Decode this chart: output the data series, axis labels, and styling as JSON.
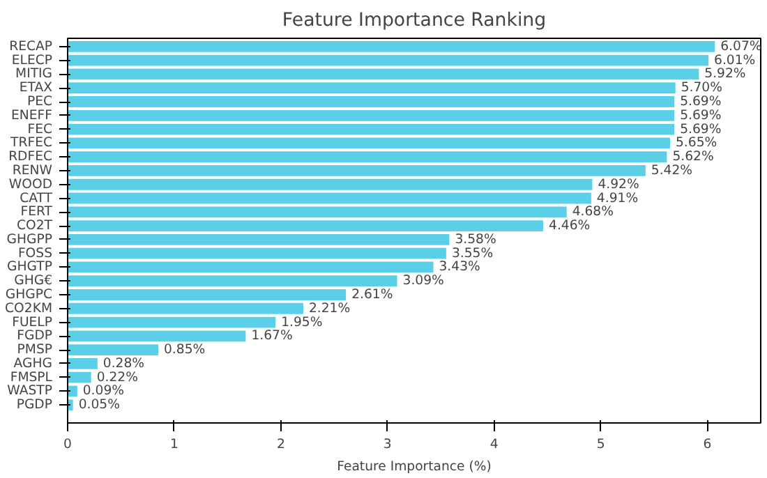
{
  "chart_data": {
    "type": "bar",
    "orientation": "horizontal",
    "title": "Feature Importance Ranking",
    "xlabel": "Feature Importance (%)",
    "categories": [
      "RECAP",
      "ELECP",
      "MITIG",
      "ETAX",
      "PEC",
      "ENEFF",
      "FEC",
      "TRFEC",
      "RDFEC",
      "RENW",
      "WOOD",
      "CATT",
      "FERT",
      "CO2T",
      "GHGPP",
      "FOSS",
      "GHGTP",
      "GHG€",
      "GHGPC",
      "CO2KM",
      "FUELP",
      "FGDP",
      "PMSP",
      "AGHG",
      "FMSPL",
      "WASTP",
      "PGDP"
    ],
    "values": [
      6.07,
      6.01,
      5.92,
      5.7,
      5.69,
      5.69,
      5.69,
      5.65,
      5.62,
      5.42,
      4.92,
      4.91,
      4.68,
      4.46,
      3.58,
      3.55,
      3.43,
      3.09,
      2.61,
      2.21,
      1.95,
      1.67,
      0.85,
      0.28,
      0.22,
      0.09,
      0.05
    ],
    "value_labels": [
      "6.07%",
      "6.01%",
      "5.92%",
      "5.70%",
      "5.69%",
      "5.69%",
      "5.69%",
      "5.65%",
      "5.62%",
      "5.42%",
      "4.92%",
      "4.91%",
      "4.68%",
      "4.46%",
      "3.58%",
      "3.55%",
      "3.43%",
      "3.09%",
      "2.61%",
      "2.21%",
      "1.95%",
      "1.67%",
      "0.85%",
      "0.28%",
      "0.22%",
      "0.09%",
      "0.05%"
    ],
    "color": "#5bcfe8",
    "xlim": [
      0,
      6.5
    ],
    "xticks": [
      0,
      1,
      2,
      3,
      4,
      5,
      6
    ],
    "grid": false
  }
}
